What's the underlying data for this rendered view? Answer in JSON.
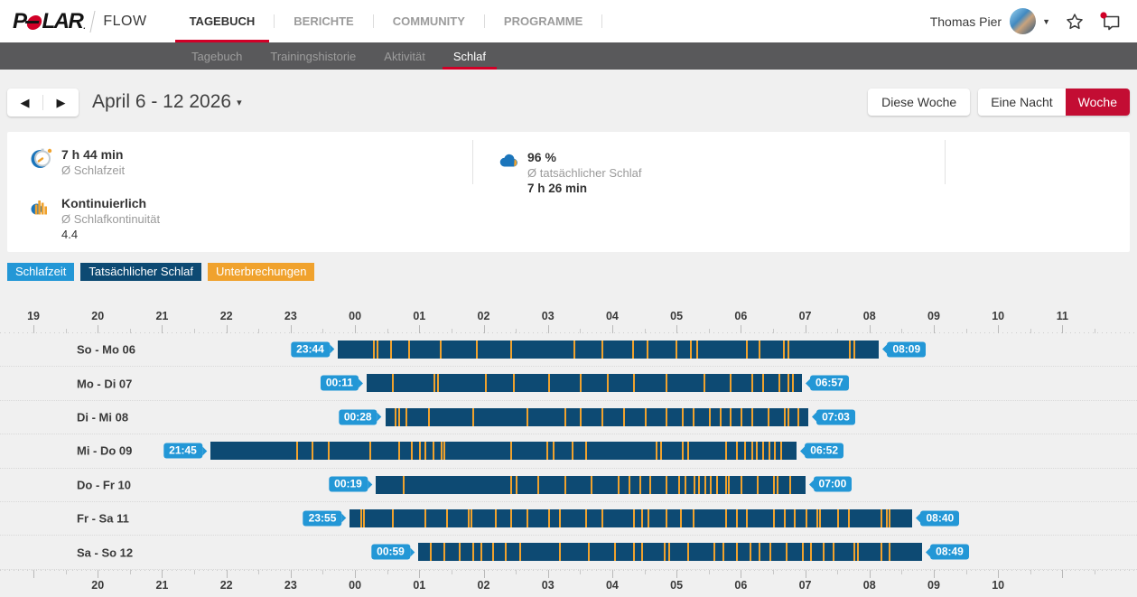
{
  "header": {
    "logo": {
      "p": "P",
      "lar": "LAR",
      "reg": "."
    },
    "flow": "FLOW",
    "nav": [
      {
        "label": "TAGEBUCH",
        "active": true
      },
      {
        "label": "BERICHTE",
        "active": false
      },
      {
        "label": "COMMUNITY",
        "active": false
      },
      {
        "label": "PROGRAMME",
        "active": false
      }
    ],
    "user_name": "Thomas Pier"
  },
  "subnav": {
    "items": [
      {
        "label": "Tagebuch",
        "active": false
      },
      {
        "label": "Trainingshistorie",
        "active": false
      },
      {
        "label": "Aktivität",
        "active": false
      },
      {
        "label": "Schlaf",
        "active": true
      }
    ]
  },
  "date_nav": {
    "prev": "◀",
    "next": "▶",
    "title": "April 6 - 12 2026",
    "caret": "▾"
  },
  "view_buttons": {
    "this_week": "Diese Woche",
    "one_night": "Eine Nacht",
    "week": "Woche"
  },
  "summary": {
    "sleep_time": {
      "value": "7 h 44 min",
      "label": "Ø Schlafzeit"
    },
    "continuity": {
      "value": "Kontinuierlich",
      "label": "Ø Schlafkontinuität",
      "score": "4.4"
    },
    "actual_sleep": {
      "value": "96 %",
      "label": "Ø tatsächlicher Schlaf",
      "duration": "7 h 26 min"
    }
  },
  "legend": [
    {
      "label": "Schlafzeit",
      "color": "#2397d6"
    },
    {
      "label": "Tatsächlicher Schlaf",
      "color": "#0d4a73"
    },
    {
      "label": "Unterbrechungen",
      "color": "#f0a22d"
    }
  ],
  "chart_data": {
    "type": "sleep-timeline",
    "colors": {
      "sleep_period": "#0d4a73",
      "interruption": "#f0a22d",
      "badge": "#2397d6"
    },
    "axis": {
      "top_labels": [
        "19",
        "20",
        "21",
        "22",
        "23",
        "00",
        "01",
        "02",
        "03",
        "04",
        "05",
        "06",
        "07",
        "08",
        "09",
        "10",
        "11"
      ],
      "top_start_hour": 19,
      "bottom_labels": [
        "20",
        "21",
        "22",
        "23",
        "00",
        "01",
        "02",
        "03",
        "04",
        "05",
        "06",
        "07",
        "08",
        "09",
        "10"
      ],
      "bottom_start_hour": 20
    },
    "rows": [
      {
        "day": "So - Mo 06",
        "start": "23:44",
        "end": "08:09",
        "start_h": 23.73,
        "end_h": 32.15,
        "interruptions": [
          24.28,
          24.33,
          24.55,
          24.83,
          25.32,
          25.88,
          26.41,
          27.4,
          27.83,
          28.31,
          28.54,
          28.99,
          29.21,
          29.31,
          30.08,
          30.28,
          30.66,
          30.73,
          31.68,
          31.75
        ]
      },
      {
        "day": "Mo - Di 07",
        "start": "00:11",
        "end": "06:57",
        "start_h": 24.18,
        "end_h": 30.95,
        "interruptions": [
          24.58,
          25.22,
          25.28,
          26.02,
          26.45,
          27.0,
          27.5,
          27.92,
          28.33,
          28.83,
          29.42,
          29.83,
          30.17,
          30.33,
          30.58,
          30.73,
          30.8
        ]
      },
      {
        "day": "Di - Mi 08",
        "start": "00:28",
        "end": "07:03",
        "start_h": 24.47,
        "end_h": 31.05,
        "interruptions": [
          24.62,
          24.67,
          24.78,
          25.13,
          25.83,
          26.67,
          27.25,
          27.5,
          27.83,
          28.17,
          28.5,
          28.83,
          29.08,
          29.25,
          29.5,
          29.67,
          29.83,
          30.0,
          30.17,
          30.42,
          30.67,
          30.72,
          30.88
        ]
      },
      {
        "day": "Mi - Do 09",
        "start": "21:45",
        "end": "06:52",
        "start_h": 21.75,
        "end_h": 30.87,
        "interruptions": [
          23.08,
          23.33,
          23.58,
          24.23,
          24.67,
          24.87,
          25.0,
          25.08,
          25.2,
          25.33,
          25.38,
          26.42,
          26.97,
          27.07,
          27.37,
          27.58,
          28.67,
          28.75,
          29.08,
          29.17,
          29.75,
          29.92,
          30.05,
          30.17,
          30.23,
          30.33,
          30.43,
          30.52,
          30.62
        ]
      },
      {
        "day": "Do - Fr 10",
        "start": "00:19",
        "end": "07:00",
        "start_h": 24.32,
        "end_h": 31.0,
        "interruptions": [
          24.75,
          26.42,
          26.5,
          26.83,
          27.25,
          27.67,
          28.08,
          28.25,
          28.42,
          28.58,
          28.83,
          29.03,
          29.13,
          29.27,
          29.33,
          29.43,
          29.52,
          29.62,
          29.75,
          29.8,
          30.0,
          30.25,
          30.5,
          30.55,
          30.75
        ]
      },
      {
        "day": "Fr - Sa 11",
        "start": "23:55",
        "end": "08:40",
        "start_h": 23.92,
        "end_h": 32.67,
        "interruptions": [
          24.08,
          24.13,
          24.58,
          25.08,
          25.42,
          25.75,
          25.8,
          26.17,
          26.42,
          26.67,
          27.0,
          27.17,
          27.58,
          27.83,
          28.33,
          28.45,
          28.55,
          28.83,
          29.05,
          29.25,
          29.75,
          29.92,
          30.08,
          30.5,
          30.67,
          30.83,
          31.0,
          31.17,
          31.22,
          31.5,
          31.67,
          32.17,
          32.25,
          32.3
        ]
      },
      {
        "day": "Sa - So 12",
        "start": "00:59",
        "end": "08:49",
        "start_h": 24.98,
        "end_h": 32.82,
        "interruptions": [
          25.17,
          25.37,
          25.62,
          25.83,
          25.95,
          26.13,
          26.33,
          26.55,
          27.17,
          27.62,
          28.03,
          28.32,
          28.45,
          28.8,
          28.87,
          29.17,
          29.58,
          29.72,
          29.93,
          30.13,
          30.28,
          30.45,
          30.7,
          30.95,
          31.08,
          31.27,
          31.43,
          31.75,
          31.8,
          32.17,
          32.3
        ]
      }
    ]
  }
}
